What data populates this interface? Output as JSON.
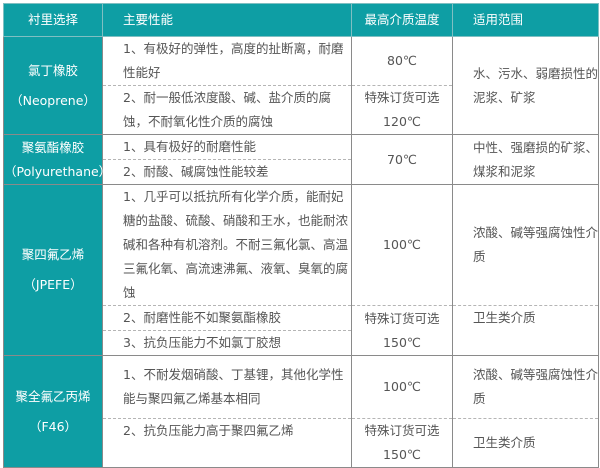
{
  "headers": [
    "衬里选择",
    "主要性能",
    "最高介质温度",
    "适用范围"
  ],
  "groups": [
    {
      "name": "氯丁橡胶",
      "code": "（Neoprene）",
      "props": [
        "1、有极好的弹性，高度的扯断离，耐磨性能好",
        "2、耐一般低浓度酸、碱、盐介质的腐蚀，不耐氧化性介质的腐蚀"
      ],
      "temps": [
        "80℃",
        "特殊订货可选",
        "120℃"
      ],
      "uses": [
        "水、污水、弱磨损性的泥浆、矿浆"
      ]
    },
    {
      "name": "聚氨酯橡胶",
      "code": "（Polyurethane）",
      "props": [
        "1、具有极好的耐磨性能",
        "2、耐酸、碱腐蚀性能较差"
      ],
      "temps": [
        "70℃"
      ],
      "uses": [
        "中性、强磨损的矿浆、煤浆和泥浆"
      ]
    },
    {
      "name": "聚四氟乙烯",
      "code": "（JPEFE）",
      "props": [
        "1、几乎可以抵抗所有化学介质，能耐妃糖的盐酸、硫酸、硝酸和王水，也能耐浓碱和各种有机溶剂。不耐三氟化氯、高温三氟化氧、高流速沸氟、液氧、臭氧的腐蚀",
        "2、耐磨性能不如聚氨酯橡胶",
        "3、抗负压能力不如氯丁胶想"
      ],
      "temps": [
        "100℃",
        "特殊订货可选",
        "150℃"
      ],
      "uses": [
        "浓酸、碱等强腐蚀性介质",
        "卫生类介质"
      ]
    },
    {
      "name": "聚全氟乙丙烯",
      "code": "（F46）",
      "props": [
        "1、不耐发烟硝酸、丁基锂，其他化学性能与聚四氟乙烯基本相同",
        "2、抗负压能力高于聚四氟乙烯"
      ],
      "temps": [
        "100℃",
        "特殊订货可选",
        "150℃"
      ],
      "uses": [
        "浓酸、碱等强腐蚀性介质",
        "卫生类介质"
      ]
    }
  ],
  "colors": {
    "header_bg": "#0e9ea4",
    "text": "#555555"
  }
}
